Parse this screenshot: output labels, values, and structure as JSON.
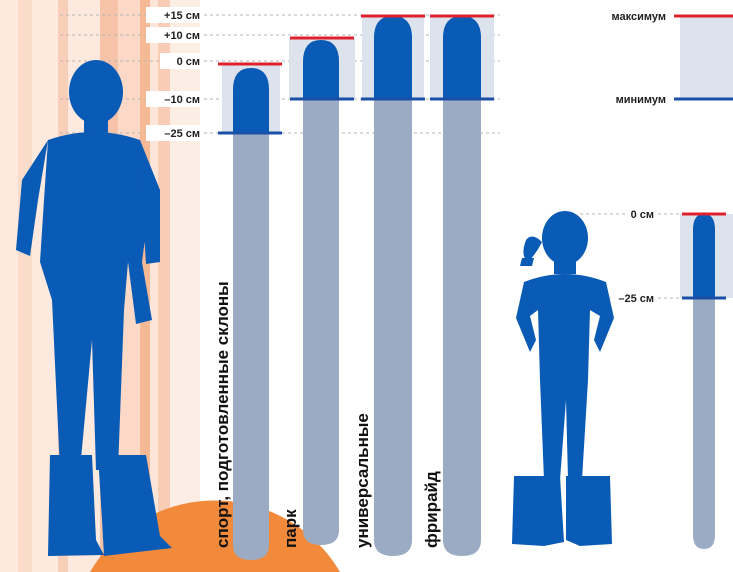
{
  "colors": {
    "person": "#0a5bb5",
    "ski_body": "#9aabc3",
    "ski_range": "#dce3ec",
    "max_line": "#e0202c",
    "min_line": "#1a4fa6",
    "accent_orange": "#f28a3c",
    "stripe": "#f7c6ad"
  },
  "adult_scale": {
    "marks": [
      {
        "label": "+15 см"
      },
      {
        "label": "+10 см"
      },
      {
        "label": "0 см"
      },
      {
        "label": "–10 см"
      },
      {
        "label": "–25 см"
      }
    ]
  },
  "skis": [
    {
      "label": "спорт, подготовленные склоны",
      "max": "0 см",
      "min": "–25 см"
    },
    {
      "label": "парк",
      "max": "+10 см",
      "min": "–10 см"
    },
    {
      "label": "универсальные",
      "max": "+15 см",
      "min": "–10 см"
    },
    {
      "label": "фрирайд",
      "max": "+15 см",
      "min": "–10 см"
    }
  ],
  "legend": {
    "max_label": "максимум",
    "min_label": "минимум"
  },
  "child_scale": {
    "marks": [
      {
        "label": "0 см"
      },
      {
        "label": "–25 см"
      }
    ]
  },
  "icons": {
    "adult": "adult-skier-silhouette",
    "child": "child-skier-silhouette"
  }
}
